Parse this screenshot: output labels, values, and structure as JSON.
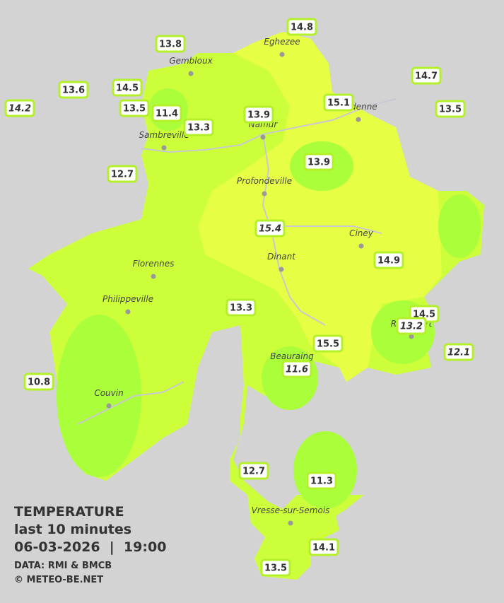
{
  "legend": {
    "title": "TEMPERATURE",
    "subtitle": "last 10 minutes",
    "datetime": "06-03-2026  |  19:00",
    "source": "DATA: RMI & BMCB",
    "credit": "© METEO-BE.NET"
  },
  "towns": [
    "Eghezee",
    "Gembloux",
    "Andenne",
    "Namur",
    "Sambreville",
    "Profondeville",
    "Ciney",
    "Dinant",
    "Florennes",
    "Philippeville",
    "Beauraing",
    "Rochefort",
    "Couvin",
    "Vresse-sur-Semois"
  ],
  "stations": [
    {
      "value": 13.8
    },
    {
      "value": 14.8
    },
    {
      "value": 14.7
    },
    {
      "value": 13.6
    },
    {
      "value": 14.5
    },
    {
      "value": 14.2,
      "italic": true
    },
    {
      "value": 13.5
    },
    {
      "value": 11.4
    },
    {
      "value": 13.3
    },
    {
      "value": 13.9
    },
    {
      "value": 15.1
    },
    {
      "value": 13.5
    },
    {
      "value": 12.7
    },
    {
      "value": 13.9
    },
    {
      "value": 15.4,
      "italic": true
    },
    {
      "value": 14.9
    },
    {
      "value": 13.3
    },
    {
      "value": 14.5
    },
    {
      "value": 13.2,
      "italic": true
    },
    {
      "value": 12.1,
      "italic": true
    },
    {
      "value": 15.5
    },
    {
      "value": 11.6,
      "italic": true
    },
    {
      "value": 10.8
    },
    {
      "value": 12.7
    },
    {
      "value": 11.3
    },
    {
      "value": 14.1
    },
    {
      "value": 13.5
    }
  ]
}
